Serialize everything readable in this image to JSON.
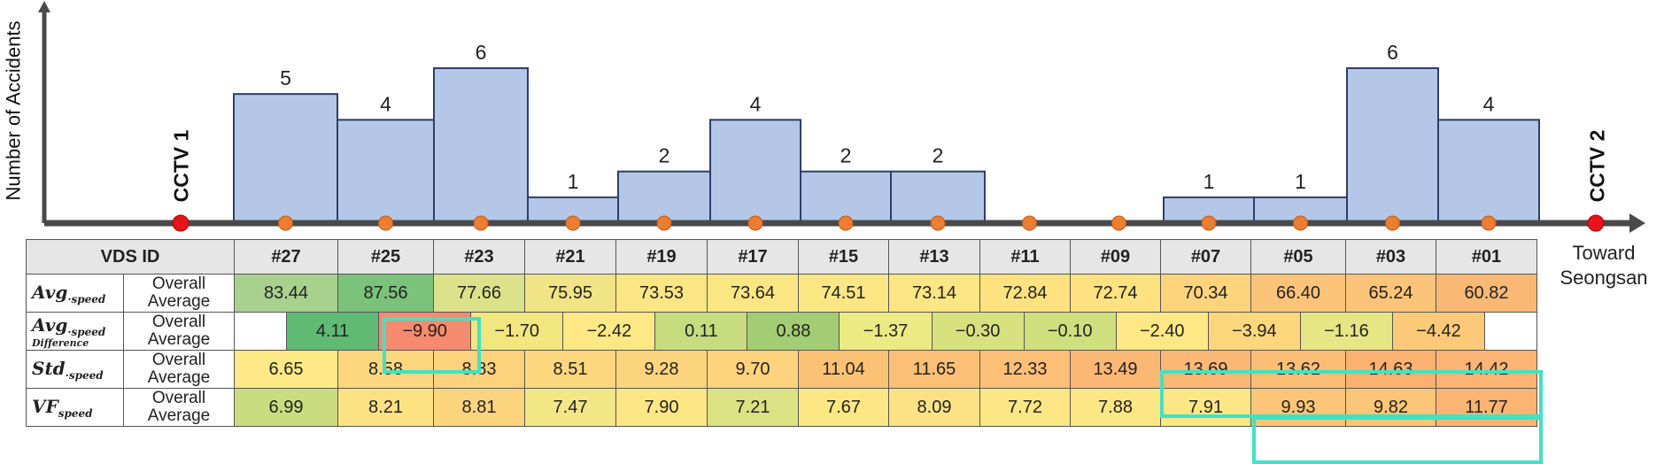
{
  "chart_data": {
    "type": "bar",
    "ylabel": "Number of Accidents",
    "categories": [
      "#27",
      "#25",
      "#23",
      "#21",
      "#19",
      "#17",
      "#15",
      "#13",
      "#11",
      "#09",
      "#07",
      "#05",
      "#03",
      "#01"
    ],
    "values": [
      5,
      4,
      6,
      1,
      2,
      4,
      2,
      2,
      0,
      0,
      1,
      1,
      6,
      4
    ],
    "bar_labels": [
      "5",
      "4",
      "6",
      "1",
      "2",
      "4",
      "2",
      "2",
      "",
      "",
      "1",
      "1",
      "6",
      "4"
    ],
    "ylim": [
      0,
      7
    ],
    "markers": {
      "start": "CCTV 1",
      "end": "CCTV 2"
    },
    "direction_label_line1": "Toward",
    "direction_label_line2": "Seongsan",
    "colors": {
      "bar": "#b4c7e7",
      "bar_edge": "#2f3d6b",
      "vds_dot": "#ed7d31",
      "cctv_dot": "#e8131b",
      "highlight": "#3ee3c4"
    }
  },
  "table": {
    "header_label": "VDS ID",
    "ids": [
      "#27",
      "#25",
      "#23",
      "#21",
      "#19",
      "#17",
      "#15",
      "#13",
      "#11",
      "#09",
      "#07",
      "#05",
      "#03",
      "#01"
    ],
    "sub_label": "Overall Average",
    "rows": {
      "avg": {
        "label": "Avg",
        "sub": "speed",
        "values": [
          "83.44",
          "87.56",
          "77.66",
          "75.95",
          "73.53",
          "73.64",
          "74.51",
          "73.14",
          "72.84",
          "72.74",
          "70.34",
          "66.40",
          "65.24",
          "60.82"
        ],
        "colors": [
          "#a9d18e",
          "#7bc27a",
          "#dbe28a",
          "#f0e486",
          "#fbe684",
          "#fbe684",
          "#fbe684",
          "#fbe684",
          "#fde27f",
          "#fde27f",
          "#fdd47c",
          "#fcc478",
          "#fcc478",
          "#f9b874"
        ]
      },
      "diff": {
        "label": "Avg",
        "sub": "speed",
        "sub2": "Difference",
        "values": [
          "4.11",
          "−9.90",
          "−1.70",
          "−2.42",
          "0.11",
          "0.88",
          "−1.37",
          "−0.30",
          "−0.10",
          "−2.40",
          "−3.94",
          "−1.16",
          "−4.42"
        ],
        "colors": [
          "#5fba74",
          "#f68a6e",
          "#f2e67e",
          "#fee785",
          "#c6dc7f",
          "#a3cd73",
          "#ecea83",
          "#d7e27f",
          "#cfdf7d",
          "#fee785",
          "#fed67c",
          "#e6e684",
          "#fcc979"
        ]
      },
      "std": {
        "label": "Std",
        "sub": "speed",
        "values": [
          "6.65",
          "8.58",
          "8.83",
          "8.51",
          "9.28",
          "9.70",
          "11.04",
          "11.65",
          "12.33",
          "13.49",
          "13.69",
          "13.62",
          "14.63",
          "14.42"
        ],
        "colors": [
          "#fde985",
          "#fdd77f",
          "#fcd27d",
          "#fdd77f",
          "#fdd47e",
          "#fdd37e",
          "#fbc276",
          "#fbc076",
          "#fbbf77",
          "#fbb874",
          "#fbb874",
          "#fbbe76",
          "#fbb271",
          "#fbb474"
        ]
      },
      "vf": {
        "label": "VF",
        "sub": "speed",
        "values": [
          "6.99",
          "8.21",
          "8.81",
          "7.47",
          "7.90",
          "7.21",
          "7.67",
          "8.09",
          "7.72",
          "7.88",
          "7.91",
          "9.93",
          "9.82",
          "11.77"
        ],
        "colors": [
          "#cbdc7f",
          "#fde283",
          "#fdd47e",
          "#f2e687",
          "#fde785",
          "#dbe283",
          "#fde785",
          "#fde285",
          "#fde785",
          "#fde785",
          "#fde785",
          "#fbc677",
          "#fbc677",
          "#fbb472"
        ]
      }
    }
  }
}
